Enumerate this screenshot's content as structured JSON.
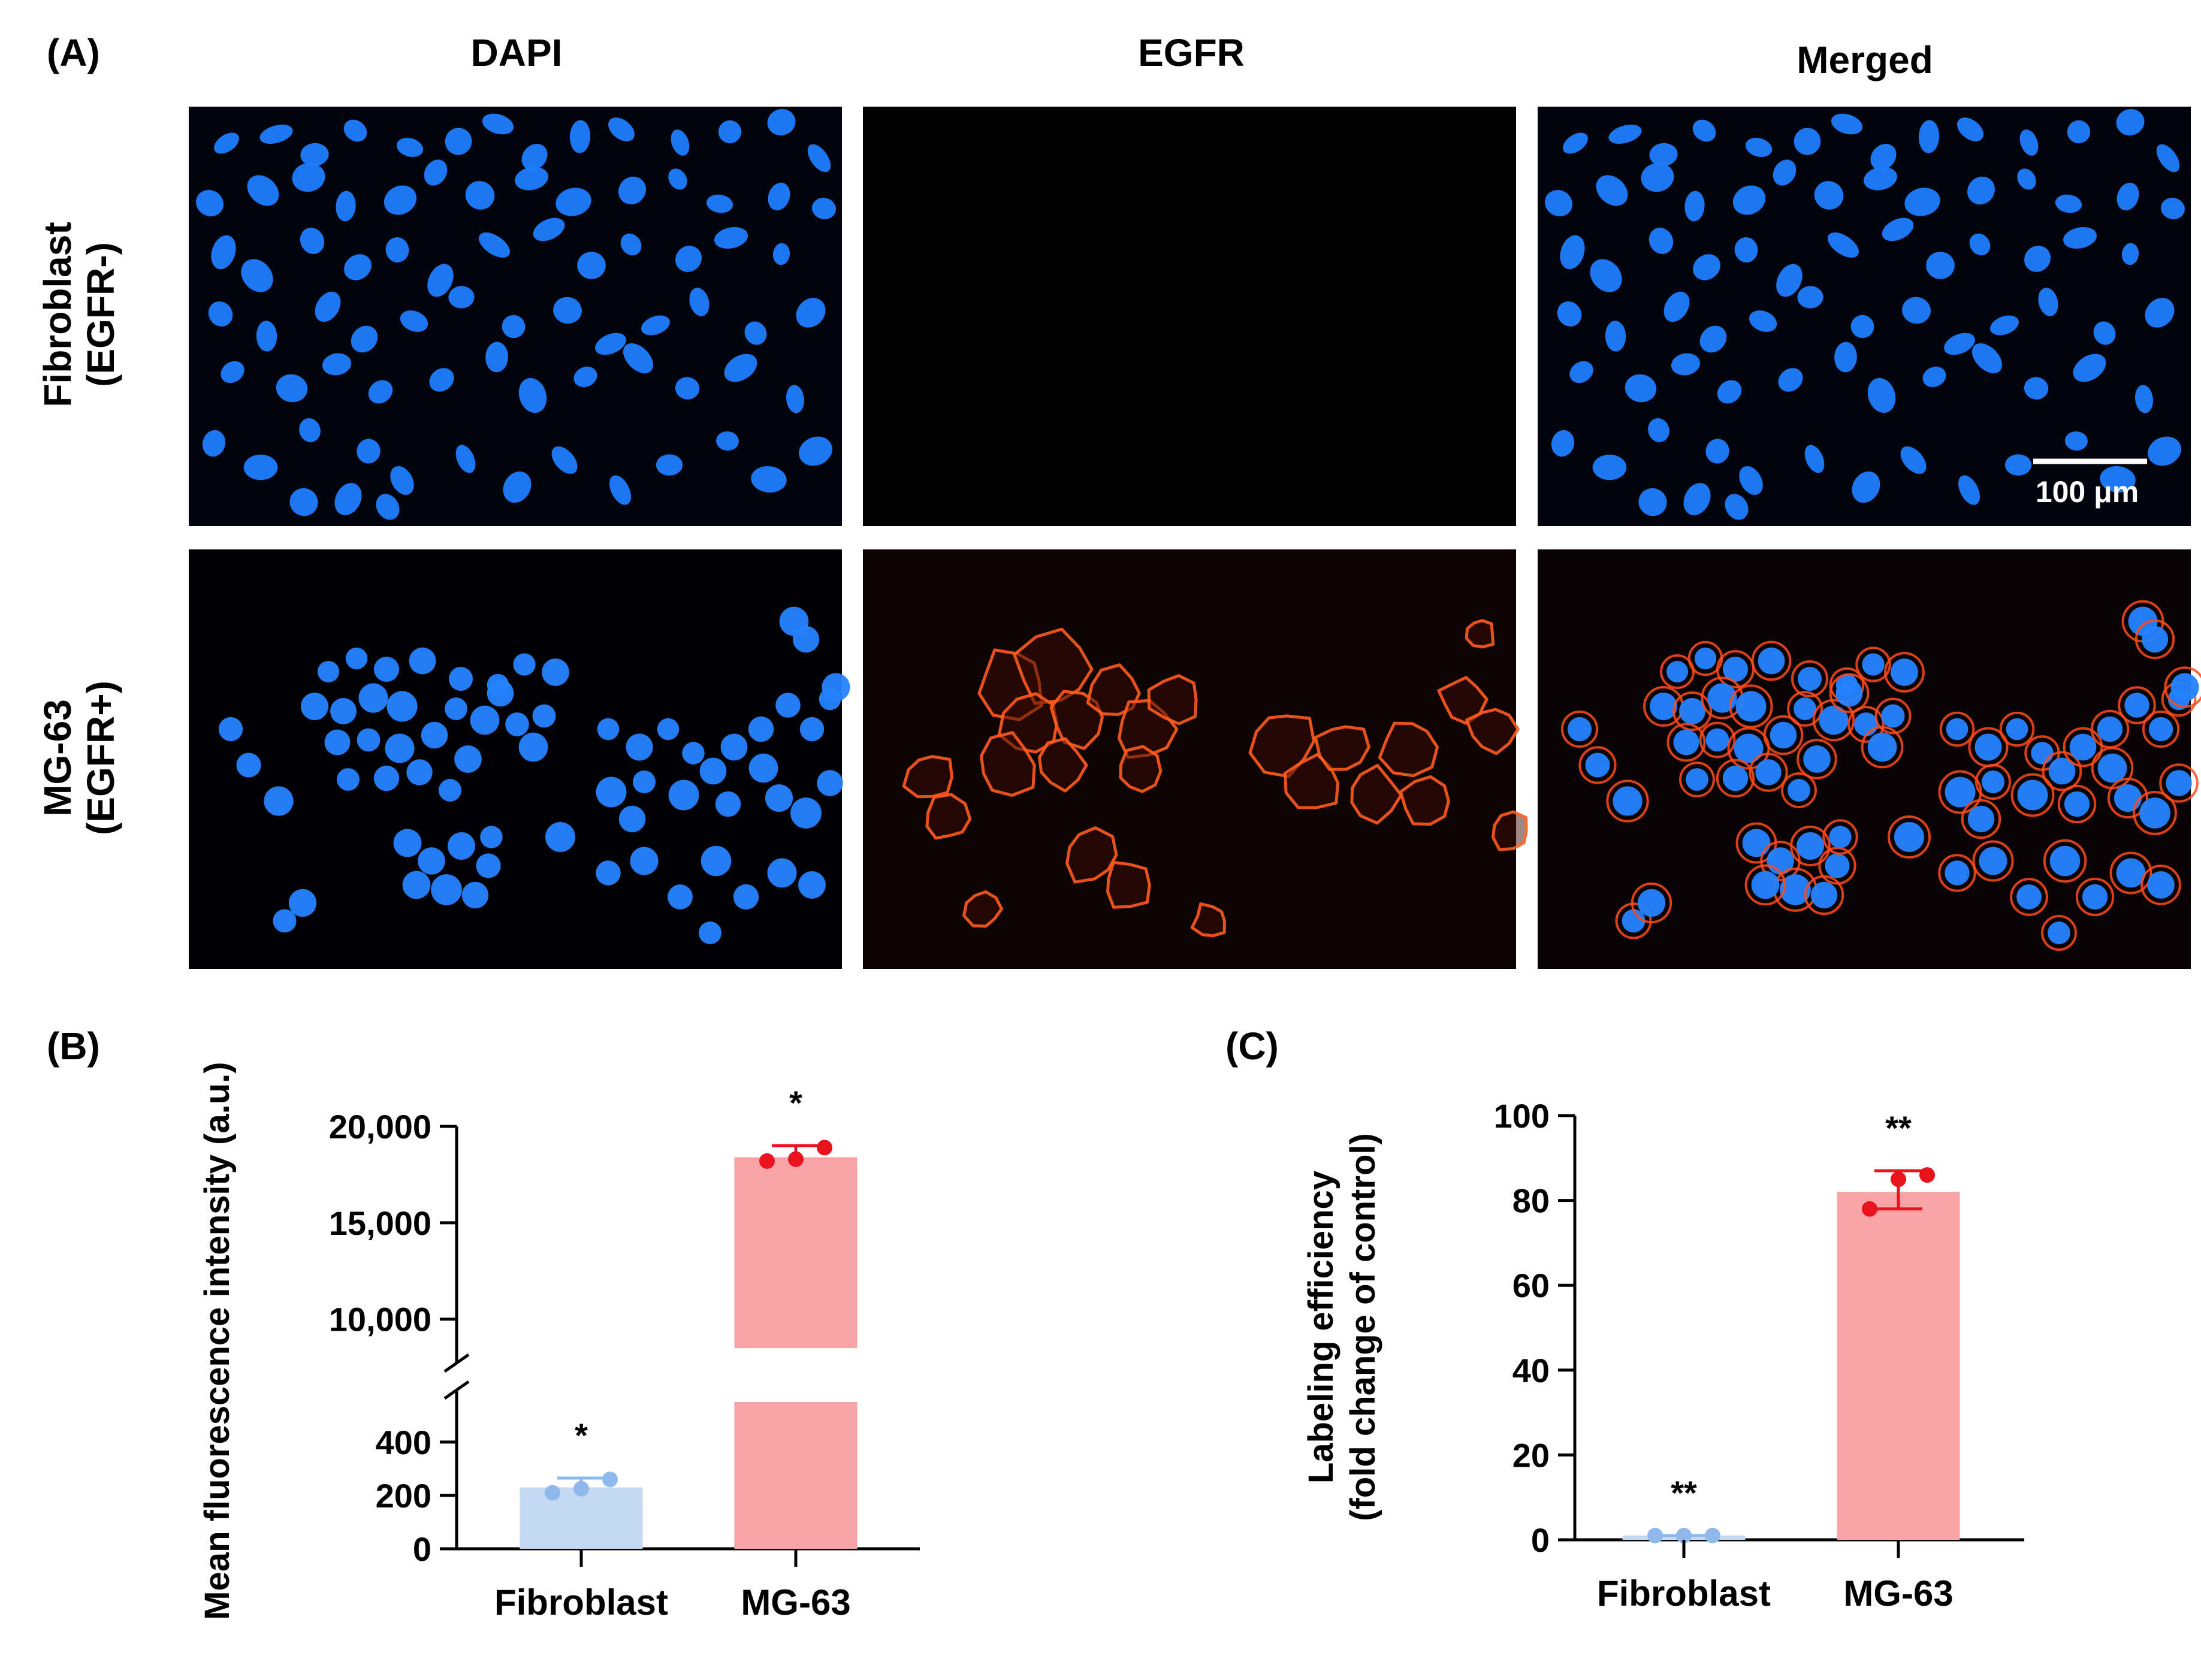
{
  "panel_a": {
    "label": "(A)",
    "columns": [
      "DAPI",
      "EGFR",
      "Merged"
    ],
    "rows": [
      {
        "line1": "Fibroblast",
        "line2": "(EGFR-)"
      },
      {
        "line1": "MG-63",
        "line2": "(EGFR+)"
      }
    ],
    "scale_bar": "100 μm",
    "colors": {
      "nucleus": "#1e7dff",
      "membrane": "#ff5a1e",
      "background": "#000000"
    }
  },
  "chart_data": [
    {
      "panel": "(B)",
      "type": "bar",
      "ylabel": "Mean fluorescence intensity (a.u.)",
      "xlabel": "",
      "categories": [
        "Fibroblast",
        "MG-63"
      ],
      "values": [
        230,
        18400
      ],
      "error_upper": [
        265,
        19000
      ],
      "points": [
        [
          210,
          225,
          260
        ],
        [
          18200,
          18300,
          18900
        ]
      ],
      "significance": [
        "*",
        "*"
      ],
      "bar_colors": [
        "#c4d9f4",
        "#f9a3a6"
      ],
      "point_colors": [
        "#8fb8ec",
        "#e8131c"
      ],
      "y_axis_break": true,
      "lower_segment": {
        "ylim": [
          0,
          550
        ],
        "ticks": [
          0,
          200,
          400
        ],
        "tick_labels": [
          "0",
          "200",
          "400"
        ]
      },
      "upper_segment": {
        "ylim": [
          8500,
          20000
        ],
        "ticks": [
          10000,
          15000,
          20000
        ],
        "tick_labels": [
          "10,000",
          "15,000",
          "20,000"
        ]
      }
    },
    {
      "panel": "(C)",
      "type": "bar",
      "ylabel_line1": "Labeling efficiency",
      "ylabel_line2": "(fold change of control)",
      "xlabel": "",
      "categories": [
        "Fibroblast",
        "MG-63"
      ],
      "values": [
        1,
        82
      ],
      "error_upper": [
        1,
        87
      ],
      "error_lower": [
        1,
        78
      ],
      "points": [
        [
          1,
          1,
          1
        ],
        [
          78,
          85,
          86
        ]
      ],
      "significance": [
        "**",
        "**"
      ],
      "bar_colors": [
        "#c4d9f4",
        "#f9a3a6"
      ],
      "point_colors": [
        "#8fb8ec",
        "#e8131c"
      ],
      "ylim": [
        0,
        100
      ],
      "ticks": [
        0,
        20,
        40,
        60,
        80,
        100
      ],
      "tick_labels": [
        "0",
        "20",
        "40",
        "60",
        "80",
        "100"
      ]
    }
  ]
}
